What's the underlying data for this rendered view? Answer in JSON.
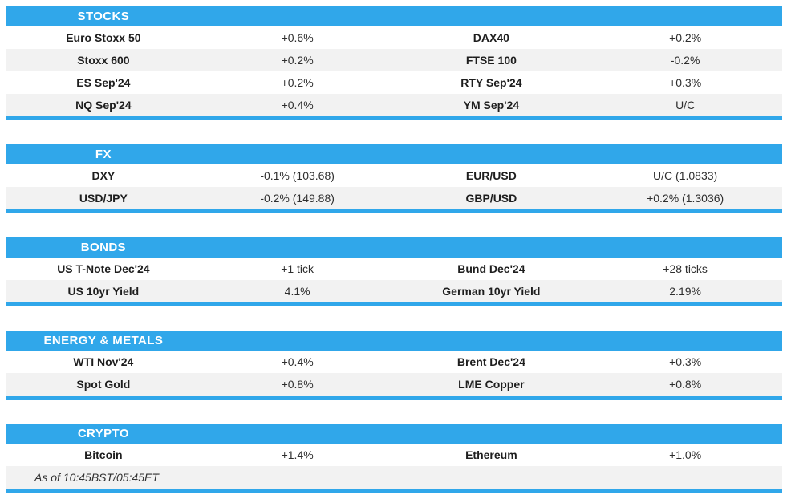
{
  "colors": {
    "accent": "#30A7EA",
    "stripe": "#F2F2F2"
  },
  "sections": [
    {
      "title": "STOCKS",
      "rows": [
        [
          {
            "name": "Euro Stoxx 50",
            "value": "+0.6%"
          },
          {
            "name": "DAX40",
            "value": "+0.2%"
          }
        ],
        [
          {
            "name": "Stoxx 600",
            "value": "+0.2%"
          },
          {
            "name": "FTSE 100",
            "value": "-0.2%"
          }
        ],
        [
          {
            "name": "ES Sep'24",
            "value": "+0.2%"
          },
          {
            "name": "RTY Sep'24",
            "value": "+0.3%"
          }
        ],
        [
          {
            "name": "NQ Sep'24",
            "value": "+0.4%"
          },
          {
            "name": "YM Sep'24",
            "value": "U/C"
          }
        ]
      ]
    },
    {
      "title": "FX",
      "rows": [
        [
          {
            "name": "DXY",
            "value": "-0.1% (103.68)"
          },
          {
            "name": "EUR/USD",
            "value": "U/C (1.0833)"
          }
        ],
        [
          {
            "name": "USD/JPY",
            "value": "-0.2% (149.88)"
          },
          {
            "name": "GBP/USD",
            "value": "+0.2% (1.3036)"
          }
        ]
      ]
    },
    {
      "title": "BONDS",
      "rows": [
        [
          {
            "name": "US T-Note Dec'24",
            "value": "+1 tick"
          },
          {
            "name": "Bund Dec'24",
            "value": "+28 ticks"
          }
        ],
        [
          {
            "name": "US 10yr Yield",
            "value": "4.1%"
          },
          {
            "name": "German 10yr Yield",
            "value": "2.19%"
          }
        ]
      ]
    },
    {
      "title": "ENERGY & METALS",
      "rows": [
        [
          {
            "name": "WTI Nov'24",
            "value": "+0.4%"
          },
          {
            "name": "Brent Dec'24",
            "value": "+0.3%"
          }
        ],
        [
          {
            "name": "Spot Gold",
            "value": "+0.8%"
          },
          {
            "name": "LME Copper",
            "value": "+0.8%"
          }
        ]
      ]
    },
    {
      "title": "CRYPTO",
      "rows": [
        [
          {
            "name": "Bitcoin",
            "value": "+1.4%"
          },
          {
            "name": "Ethereum",
            "value": "+1.0%"
          }
        ]
      ],
      "footer": "As of 10:45BST/05:45ET"
    }
  ]
}
